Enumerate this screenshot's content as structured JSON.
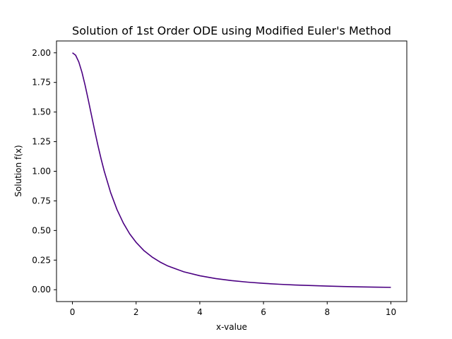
{
  "chart_data": {
    "type": "line",
    "title": "Solution of 1st Order ODE using Modified Euler's Method",
    "xlabel": "x-value",
    "ylabel": "Solution f(x)",
    "xlim": [
      -0.5,
      10.5
    ],
    "ylim": [
      -0.1,
      2.1
    ],
    "xticks": [
      0,
      2,
      4,
      6,
      8,
      10
    ],
    "yticks": [
      0.0,
      0.25,
      0.5,
      0.75,
      1.0,
      1.25,
      1.5,
      1.75,
      2.0
    ],
    "xtick_labels": [
      "0",
      "2",
      "4",
      "6",
      "8",
      "10"
    ],
    "ytick_labels": [
      "0.00",
      "0.25",
      "0.50",
      "0.75",
      "1.00",
      "1.25",
      "1.50",
      "1.75",
      "2.00"
    ],
    "grid": false,
    "series": [
      {
        "color": "#4b0082",
        "x": [
          0,
          0.1,
          0.2,
          0.3,
          0.4,
          0.5,
          0.6,
          0.7,
          0.8,
          0.9,
          1.0,
          1.2,
          1.4,
          1.6,
          1.8,
          2.0,
          2.25,
          2.5,
          2.75,
          3.0,
          3.5,
          4.0,
          4.5,
          5.0,
          5.5,
          6.0,
          6.5,
          7.0,
          7.5,
          8.0,
          8.5,
          9.0,
          9.5,
          10.0
        ],
        "values": [
          2.0,
          1.98,
          1.923,
          1.835,
          1.724,
          1.6,
          1.471,
          1.342,
          1.219,
          1.105,
          1.0,
          0.82,
          0.676,
          0.562,
          0.471,
          0.4,
          0.329,
          0.276,
          0.234,
          0.2,
          0.151,
          0.118,
          0.094,
          0.077,
          0.064,
          0.054,
          0.046,
          0.04,
          0.035,
          0.031,
          0.027,
          0.024,
          0.022,
          0.02
        ]
      }
    ]
  }
}
